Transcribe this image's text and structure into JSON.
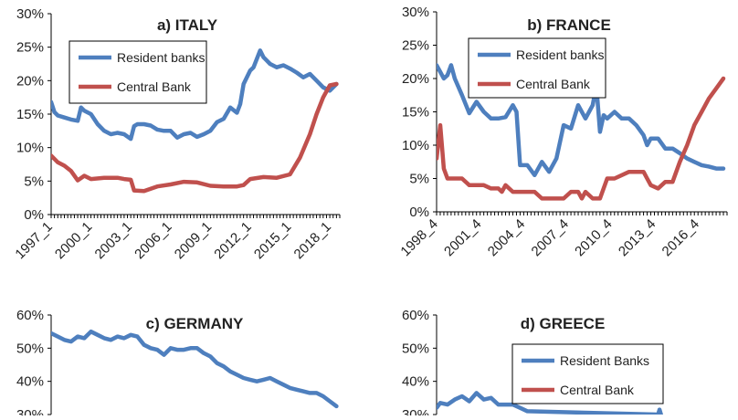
{
  "colors": {
    "resident": "#4E7FBE",
    "central": "#C0504D"
  },
  "chart_data": [
    {
      "id": "italy",
      "type": "line",
      "title": "a) ITALY",
      "ylim": [
        0,
        30
      ],
      "yticks": [
        "0%",
        "5%",
        "10%",
        "15%",
        "20%",
        "25%",
        "30%"
      ],
      "xlim": [
        1997.0,
        2018.75
      ],
      "xticks": [
        {
          "v": 1997.0,
          "label": "1997_1"
        },
        {
          "v": 2000.0,
          "label": "2000_1"
        },
        {
          "v": 2003.0,
          "label": "2003_1"
        },
        {
          "v": 2006.0,
          "label": "2006_1"
        },
        {
          "v": 2009.0,
          "label": "2009_1"
        },
        {
          "v": 2012.0,
          "label": "2012_1"
        },
        {
          "v": 2015.0,
          "label": "2015_1"
        },
        {
          "v": 2018.0,
          "label": "2018_1"
        }
      ],
      "legend": {
        "entries": [
          "Resident banks",
          "Central Bank"
        ],
        "position": "top-left"
      },
      "series": [
        {
          "name": "Resident banks",
          "x": [
            1997.0,
            1997.25,
            1997.5,
            1998.0,
            1998.5,
            1999.0,
            1999.25,
            1999.5,
            2000.0,
            2000.5,
            2001.0,
            2001.5,
            2002.0,
            2002.5,
            2003.0,
            2003.25,
            2003.5,
            2004.0,
            2004.5,
            2005.0,
            2005.5,
            2006.0,
            2006.5,
            2007.0,
            2007.5,
            2008.0,
            2008.5,
            2009.0,
            2009.5,
            2010.0,
            2010.5,
            2011.0,
            2011.25,
            2011.5,
            2012.0,
            2012.25,
            2012.75,
            2013.0,
            2013.25,
            2013.5,
            2014.0,
            2014.5,
            2015.0,
            2015.5,
            2016.0,
            2016.5,
            2017.0,
            2017.5,
            2018.0,
            2018.5
          ],
          "y": [
            16.8,
            15.3,
            14.8,
            14.5,
            14.2,
            14.0,
            16.0,
            15.5,
            15.0,
            13.5,
            12.5,
            12.0,
            12.2,
            12.0,
            11.3,
            13.2,
            13.5,
            13.5,
            13.3,
            12.7,
            12.5,
            12.5,
            11.5,
            12.0,
            12.2,
            11.6,
            12.0,
            12.5,
            13.8,
            14.3,
            16.0,
            15.2,
            16.5,
            19.5,
            21.5,
            22.0,
            24.5,
            23.5,
            23.0,
            22.5,
            22.0,
            22.3,
            21.8,
            21.2,
            20.5,
            21.0,
            20.0,
            19.0,
            18.5,
            19.5
          ]
        },
        {
          "name": "Central Bank",
          "x": [
            1997.0,
            1997.5,
            1998.0,
            1998.5,
            1999.0,
            1999.5,
            2000.0,
            2001.0,
            2002.0,
            2002.5,
            2003.0,
            2003.25,
            2004.0,
            2005.0,
            2006.0,
            2007.0,
            2008.0,
            2009.0,
            2010.0,
            2011.0,
            2011.5,
            2012.0,
            2013.0,
            2014.0,
            2015.0,
            2015.75,
            2016.5,
            2017.0,
            2017.5,
            2018.0,
            2018.5
          ],
          "y": [
            8.8,
            7.8,
            7.3,
            6.5,
            5.1,
            5.8,
            5.3,
            5.5,
            5.5,
            5.3,
            5.2,
            3.6,
            3.5,
            4.2,
            4.5,
            4.9,
            4.8,
            4.3,
            4.2,
            4.2,
            4.4,
            5.3,
            5.6,
            5.5,
            6.0,
            8.5,
            12.0,
            15.0,
            17.5,
            19.3,
            19.5
          ]
        }
      ]
    },
    {
      "id": "france",
      "type": "line",
      "title": "b) FRANCE",
      "ylim": [
        0,
        30
      ],
      "yticks": [
        "0%",
        "5%",
        "10%",
        "15%",
        "20%",
        "25%",
        "30%"
      ],
      "xlim": [
        1998.75,
        2018.75
      ],
      "xticks": [
        {
          "v": 1998.75,
          "label": "1998_4"
        },
        {
          "v": 2001.75,
          "label": "2001_4"
        },
        {
          "v": 2004.75,
          "label": "2004_4"
        },
        {
          "v": 2007.75,
          "label": "2007_4"
        },
        {
          "v": 2010.75,
          "label": "2010_4"
        },
        {
          "v": 2013.75,
          "label": "2013_4"
        },
        {
          "v": 2016.75,
          "label": "2016_4"
        }
      ],
      "legend": {
        "entries": [
          "Resident banks",
          "Central Bank"
        ],
        "position": "top-right"
      },
      "series": [
        {
          "name": "Resident banks",
          "x": [
            1998.75,
            1999.0,
            1999.25,
            1999.5,
            1999.75,
            2000.0,
            2000.5,
            2001.0,
            2001.5,
            2002.0,
            2002.5,
            2003.0,
            2003.5,
            2004.0,
            2004.25,
            2004.5,
            2005.0,
            2005.5,
            2006.0,
            2006.5,
            2007.0,
            2007.5,
            2008.0,
            2008.5,
            2009.0,
            2009.5,
            2009.75,
            2010.0,
            2010.25,
            2010.5,
            2011.0,
            2011.5,
            2012.0,
            2012.5,
            2013.0,
            2013.25,
            2013.5,
            2014.0,
            2014.5,
            2015.0,
            2015.5,
            2016.0,
            2016.5,
            2017.0,
            2017.5,
            2018.0,
            2018.5
          ],
          "y": [
            22.0,
            21.0,
            20.0,
            20.5,
            22.0,
            20.0,
            17.5,
            14.8,
            16.5,
            15.0,
            14.0,
            14.0,
            14.2,
            16.0,
            15.0,
            7.0,
            7.0,
            5.5,
            7.5,
            6.0,
            8.0,
            13.0,
            12.5,
            16.0,
            14.0,
            16.0,
            19.0,
            12.0,
            14.5,
            14.0,
            15.0,
            14.0,
            14.0,
            13.0,
            11.5,
            10.0,
            11.0,
            11.0,
            9.5,
            9.5,
            8.8,
            8.0,
            7.5,
            7.0,
            6.8,
            6.5,
            6.5
          ]
        },
        {
          "name": "Central Bank",
          "x": [
            1998.75,
            1999.0,
            1999.25,
            1999.5,
            2000.0,
            2000.5,
            2001.0,
            2002.0,
            2002.5,
            2003.0,
            2003.25,
            2003.5,
            2004.0,
            2005.0,
            2005.5,
            2006.0,
            2007.0,
            2007.5,
            2008.0,
            2008.5,
            2008.75,
            2009.0,
            2009.5,
            2010.0,
            2010.5,
            2011.0,
            2012.0,
            2012.5,
            2013.0,
            2013.25,
            2013.5,
            2014.0,
            2014.5,
            2015.0,
            2015.5,
            2016.0,
            2016.5,
            2017.0,
            2017.5,
            2018.0,
            2018.5
          ],
          "y": [
            8.0,
            13.0,
            6.5,
            5.0,
            5.0,
            5.0,
            4.0,
            4.0,
            3.5,
            3.5,
            3.0,
            4.0,
            3.0,
            3.0,
            3.0,
            2.0,
            2.0,
            2.0,
            3.0,
            3.0,
            2.0,
            3.0,
            2.0,
            2.0,
            5.0,
            5.0,
            6.0,
            6.0,
            6.0,
            5.0,
            4.0,
            3.5,
            4.5,
            4.5,
            7.5,
            10.0,
            13.0,
            15.0,
            17.0,
            18.5,
            20.0
          ]
        }
      ]
    },
    {
      "id": "germany",
      "type": "line",
      "title": "c) GERMANY",
      "ylim": [
        30,
        60
      ],
      "yticks": [
        "30%",
        "40%",
        "50%",
        "60%"
      ],
      "xlim": [
        1997.0,
        2018.75
      ],
      "xticks": [],
      "legend": null,
      "series": [
        {
          "name": "",
          "x": [
            1997.0,
            1997.5,
            1998.0,
            1998.5,
            1999.0,
            1999.5,
            2000.0,
            2000.5,
            2001.0,
            2001.5,
            2002.0,
            2002.5,
            2003.0,
            2003.5,
            2004.0,
            2004.5,
            2005.0,
            2005.5,
            2006.0,
            2006.5,
            2007.0,
            2007.5,
            2008.0,
            2008.5,
            2009.0,
            2009.5,
            2010.0,
            2010.5,
            2011.0,
            2011.5,
            2012.0,
            2012.5,
            2013.0,
            2013.5,
            2014.0,
            2014.5,
            2015.0,
            2015.5,
            2016.0,
            2016.5,
            2017.0,
            2017.5,
            2018.0,
            2018.5
          ],
          "y": [
            54.5,
            53.5,
            52.5,
            52.0,
            53.5,
            53.0,
            55.0,
            54.0,
            53.0,
            52.5,
            53.5,
            53.0,
            54.0,
            53.5,
            51.0,
            50.0,
            49.5,
            48.0,
            50.0,
            49.5,
            49.5,
            50.0,
            50.0,
            48.5,
            47.5,
            45.5,
            44.5,
            43.0,
            42.0,
            41.0,
            40.5,
            40.0,
            40.5,
            41.0,
            40.0,
            39.0,
            38.0,
            37.5,
            37.0,
            36.5,
            36.5,
            35.5,
            34.0,
            32.5
          ]
        }
      ]
    },
    {
      "id": "greece",
      "type": "line",
      "title": "d) GREECE",
      "ylim": [
        30,
        60
      ],
      "yticks": [
        "30%",
        "40%",
        "50%",
        "60%"
      ],
      "xlim": [
        1998.75,
        2018.75
      ],
      "xticks": [],
      "legend": {
        "entries": [
          "Resident Banks",
          "Central Bank"
        ],
        "position": "top-right"
      },
      "series": [
        {
          "name": "Resident Banks",
          "x": [
            1998.75,
            1999.0,
            1999.5,
            2000.0,
            2000.5,
            2001.0,
            2001.5,
            2002.0,
            2002.5,
            2003.0,
            2003.5,
            2004.0,
            2004.5,
            2005.0,
            2014.0,
            2014.1,
            2014.2
          ],
          "y": [
            32.0,
            33.5,
            33.0,
            34.5,
            35.5,
            34.0,
            36.5,
            34.5,
            35.0,
            33.0,
            33.0,
            33.0,
            32.0,
            31.0,
            30.0,
            31.5,
            30.0
          ]
        }
      ]
    }
  ]
}
